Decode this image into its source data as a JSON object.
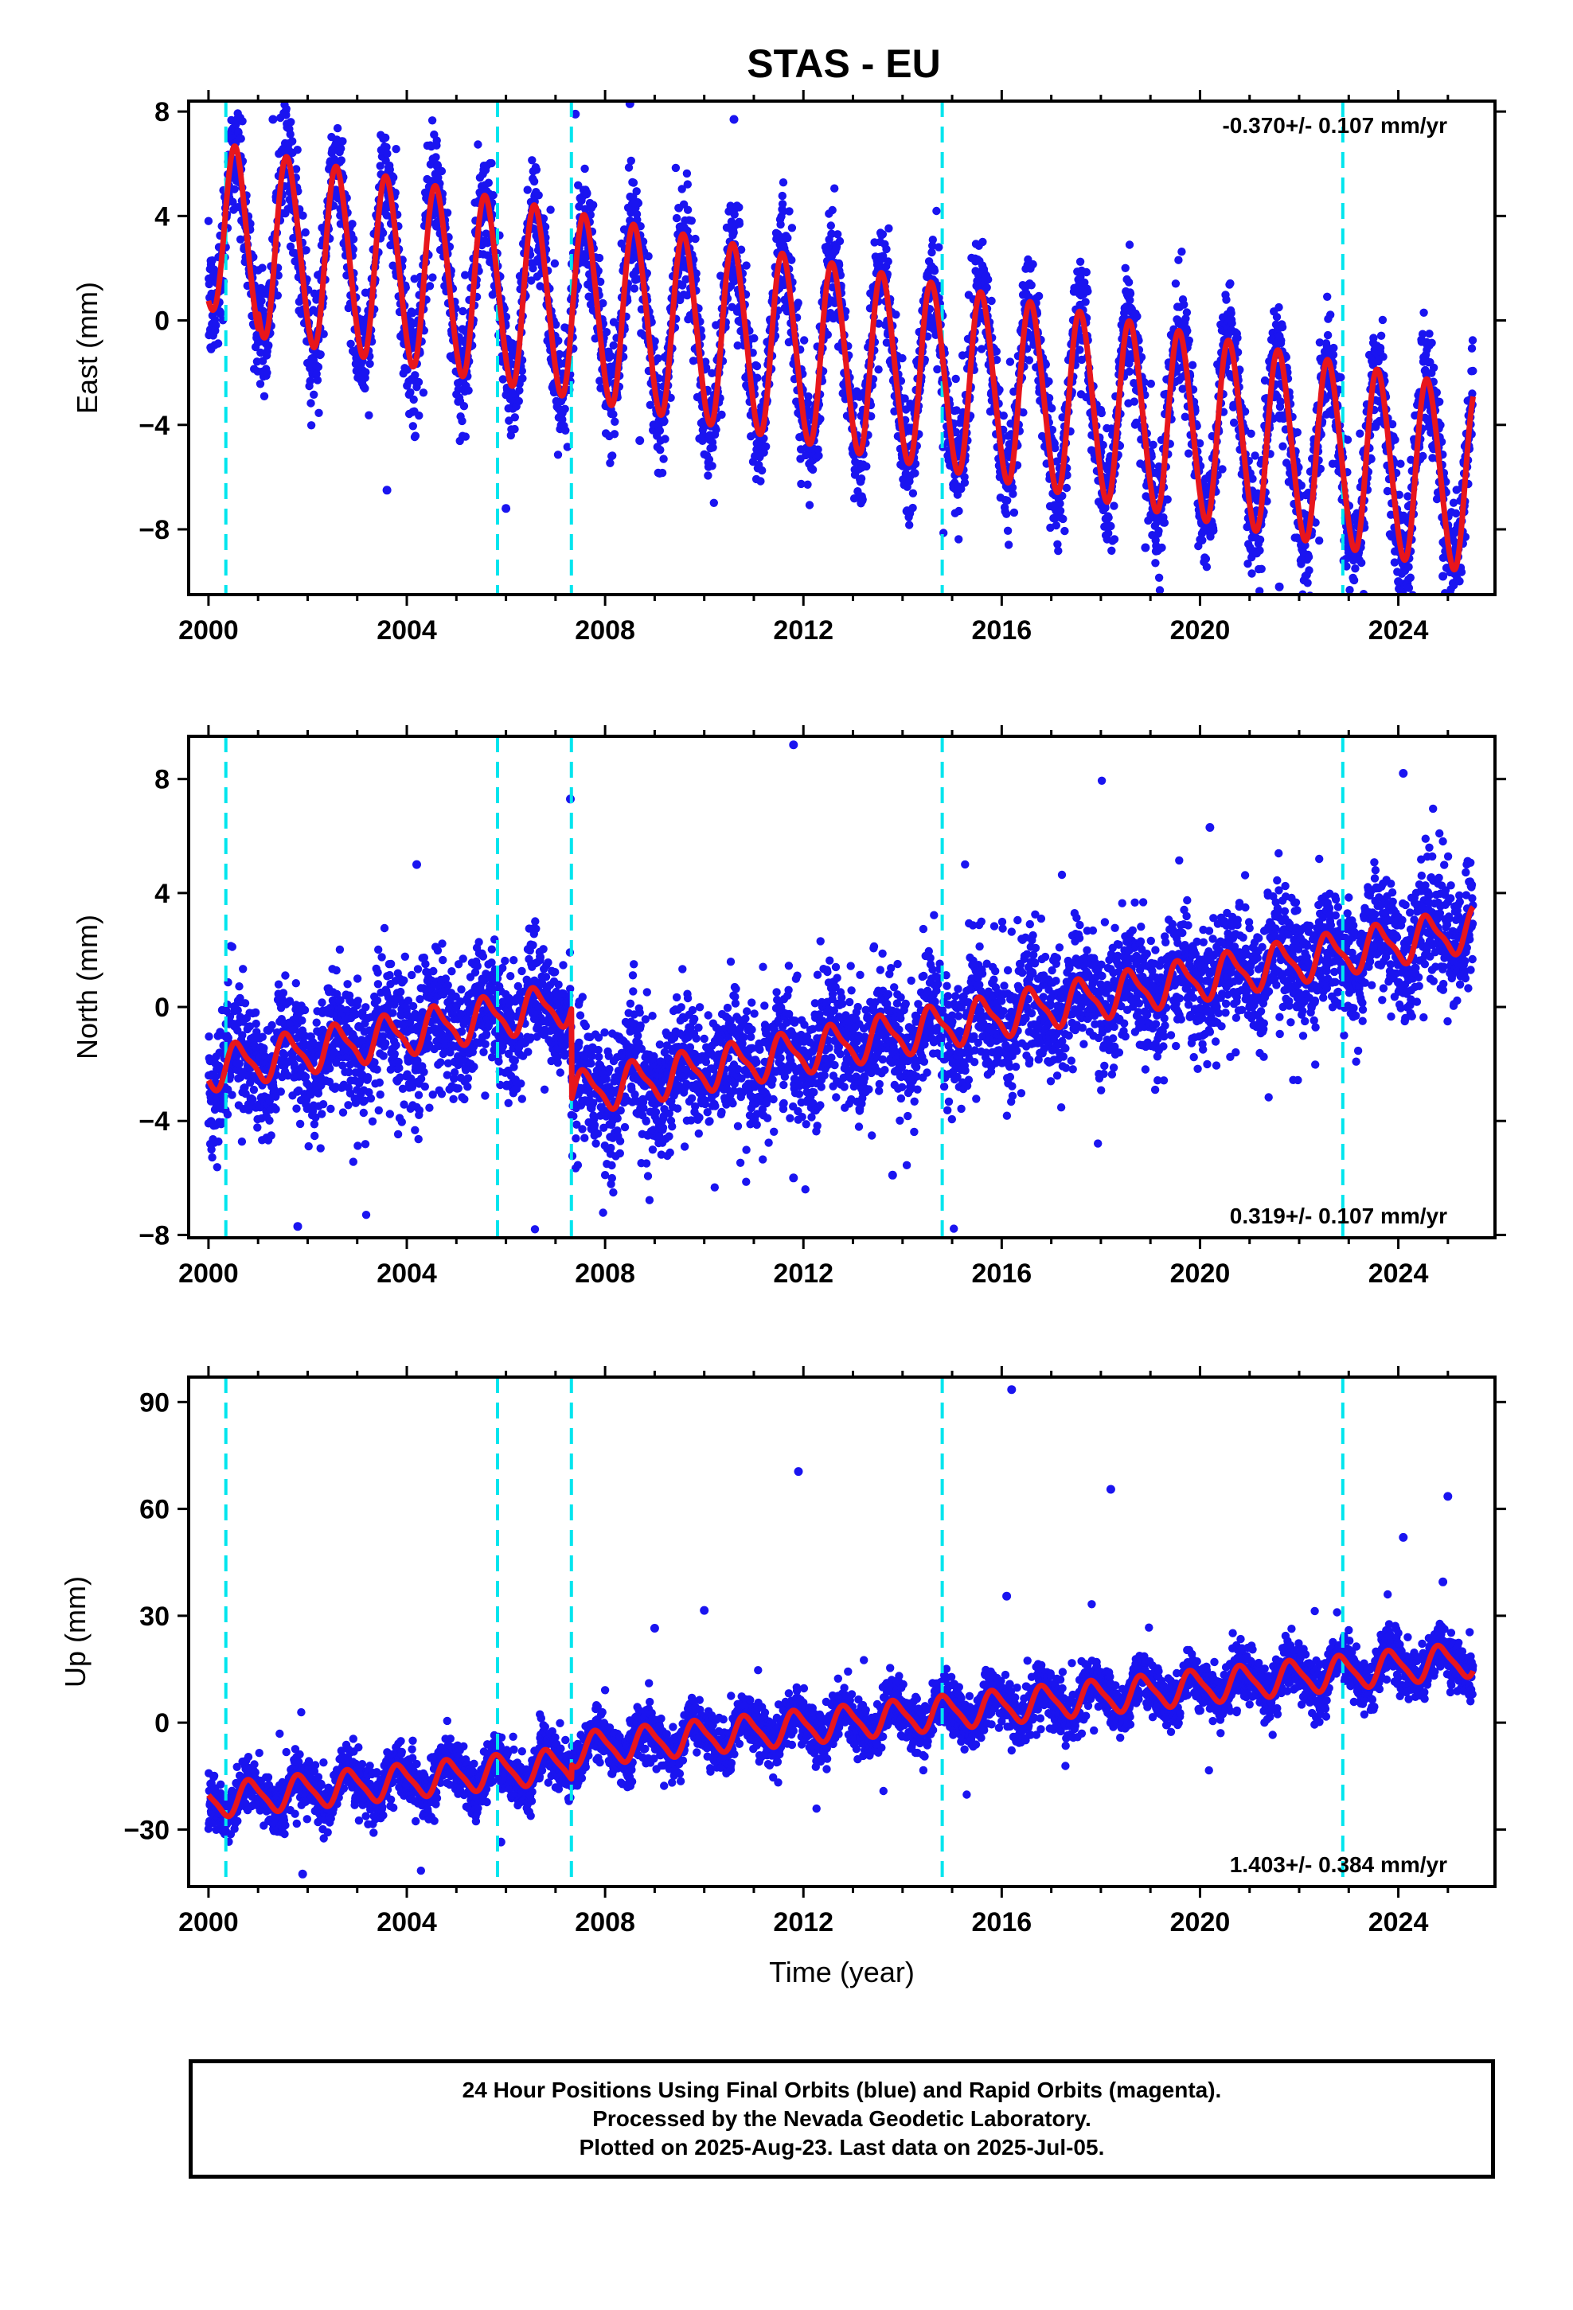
{
  "figure": {
    "title": "STAS - EU"
  },
  "chart_data": [
    {
      "type": "scatter",
      "panel": "east",
      "ylabel": "East (mm)",
      "xlabel": "",
      "xlim": [
        1999.6,
        2025.95
      ],
      "ylim": [
        -10.5,
        8.4
      ],
      "xticks": [
        2000,
        2004,
        2008,
        2012,
        2016,
        2020,
        2024
      ],
      "yticks": [
        -8,
        -4,
        0,
        4,
        8
      ],
      "ytick_labels": [
        "−8",
        "−4",
        "0",
        "4",
        "8"
      ],
      "rate_text": "-0.370+/- 0.107 mm/yr",
      "rate_position": "top-right",
      "offsets": [
        2000.35,
        2005.83,
        2007.32,
        2014.8,
        2022.88
      ],
      "model": {
        "rate_mm_yr": -0.37,
        "annual_amp_mm": 3.5,
        "annual_phase_year": 0.35,
        "semiannual_amp_mm": 0.3,
        "base_mm": 3.3,
        "scatter_sd_mm": 1.1
      },
      "series": [
        {
          "name": "Final Orbits",
          "kind": "daily positions",
          "x_range": [
            2000.0,
            2025.51
          ],
          "color": "#1a14f0"
        },
        {
          "name": "model",
          "kind": "fitted model",
          "color": "#e8161c"
        }
      ],
      "outliers": [
        [
          2000.6,
          5.9
        ],
        [
          2001.3,
          7.7
        ],
        [
          2007.4,
          7.9
        ],
        [
          2008.5,
          8.3
        ],
        [
          2008.7,
          -4.6
        ],
        [
          2010.6,
          7.7
        ],
        [
          2006.0,
          -7.2
        ],
        [
          2021.6,
          -10.2
        ],
        [
          2022.9,
          -9.2
        ],
        [
          2024.0,
          -10.0
        ],
        [
          2024.9,
          -9.8
        ],
        [
          2003.6,
          -6.5
        ],
        [
          2018.9,
          -8.7
        ]
      ],
      "grid": false
    },
    {
      "type": "scatter",
      "panel": "north",
      "ylabel": "North (mm)",
      "xlabel": "",
      "xlim": [
        1999.6,
        2025.95
      ],
      "ylim": [
        -8.1,
        9.5
      ],
      "xticks": [
        2000,
        2004,
        2008,
        2012,
        2016,
        2020,
        2024
      ],
      "yticks": [
        -8,
        -4,
        0,
        4,
        8
      ],
      "ytick_labels": [
        "−8",
        "−4",
        "0",
        "4",
        "8"
      ],
      "rate_text": "0.319+/- 0.107 mm/yr",
      "rate_position": "bottom-right",
      "offsets": [
        2000.35,
        2005.83,
        2007.32,
        2014.8,
        2022.88
      ],
      "model": {
        "rate_mm_yr": 0.319,
        "annual_amp_mm": 0.7,
        "annual_phase_year": 0.35,
        "semiannual_amp_mm": 0.2,
        "base_mm": -2.2,
        "step_2007_mm": -3.2,
        "scatter_sd_mm": 1.1
      },
      "series": [
        {
          "name": "Final Orbits",
          "kind": "daily positions",
          "x_range": [
            2000.0,
            2025.51
          ],
          "color": "#1a14f0"
        },
        {
          "name": "model",
          "kind": "fitted model",
          "color": "#e8161c"
        }
      ],
      "outliers": [
        [
          2011.8,
          9.2
        ],
        [
          2007.3,
          7.3
        ],
        [
          2024.1,
          8.2
        ],
        [
          2001.8,
          -7.7
        ],
        [
          2011.8,
          -6.0
        ],
        [
          2013.8,
          -5.9
        ],
        [
          2004.2,
          5.0
        ],
        [
          2020.2,
          6.3
        ]
      ],
      "grid": false
    },
    {
      "type": "scatter",
      "panel": "up",
      "ylabel": "Up (mm)",
      "xlabel": "Time (year)",
      "xlim": [
        1999.6,
        2025.95
      ],
      "ylim": [
        -46,
        97
      ],
      "xticks": [
        2000,
        2004,
        2008,
        2012,
        2016,
        2020,
        2024
      ],
      "yticks": [
        -30,
        0,
        30,
        60,
        90
      ],
      "ytick_labels": [
        "−30",
        "0",
        "30",
        "60",
        "90"
      ],
      "rate_text": "1.403+/- 0.384 mm/yr",
      "rate_position": "bottom-right",
      "offsets": [
        2000.35,
        2005.83,
        2007.32,
        2014.8,
        2022.88
      ],
      "model": {
        "rate_mm_yr": 1.403,
        "annual_amp_mm": 4.5,
        "annual_phase_year": 0.6,
        "semiannual_amp_mm": 1.0,
        "base_mm": -22.0,
        "step_2007_mm": 4.0,
        "scatter_sd_mm": 3.6
      },
      "series": [
        {
          "name": "Final Orbits",
          "kind": "daily positions",
          "x_range": [
            2000.0,
            2025.51
          ],
          "color": "#1a14f0"
        },
        {
          "name": "model",
          "kind": "fitted model",
          "color": "#e8161c"
        }
      ],
      "outliers": [
        [
          2016.2,
          93.5
        ],
        [
          2011.9,
          70.5
        ],
        [
          2018.2,
          65.5
        ],
        [
          2025.0,
          63.5
        ],
        [
          2024.1,
          52.0
        ],
        [
          2024.9,
          39.5
        ],
        [
          2016.1,
          35.5
        ],
        [
          2010.0,
          31.5
        ],
        [
          2009.0,
          26.5
        ],
        [
          2001.9,
          -42.5
        ],
        [
          2005.9,
          -33.5
        ]
      ],
      "grid": false
    }
  ],
  "footer": {
    "line1": "24 Hour Positions Using Final Orbits (blue) and Rapid Orbits (magenta).",
    "line2": "Processed by the Nevada Geodetic Laboratory.",
    "line3": "Plotted on 2025-Aug-23. Last data on 2025-Jul-05."
  },
  "colors": {
    "dots": "#1a14f0",
    "model_line": "#e8161c",
    "offset_lines": "#00e5ee",
    "frame": "#000000"
  }
}
